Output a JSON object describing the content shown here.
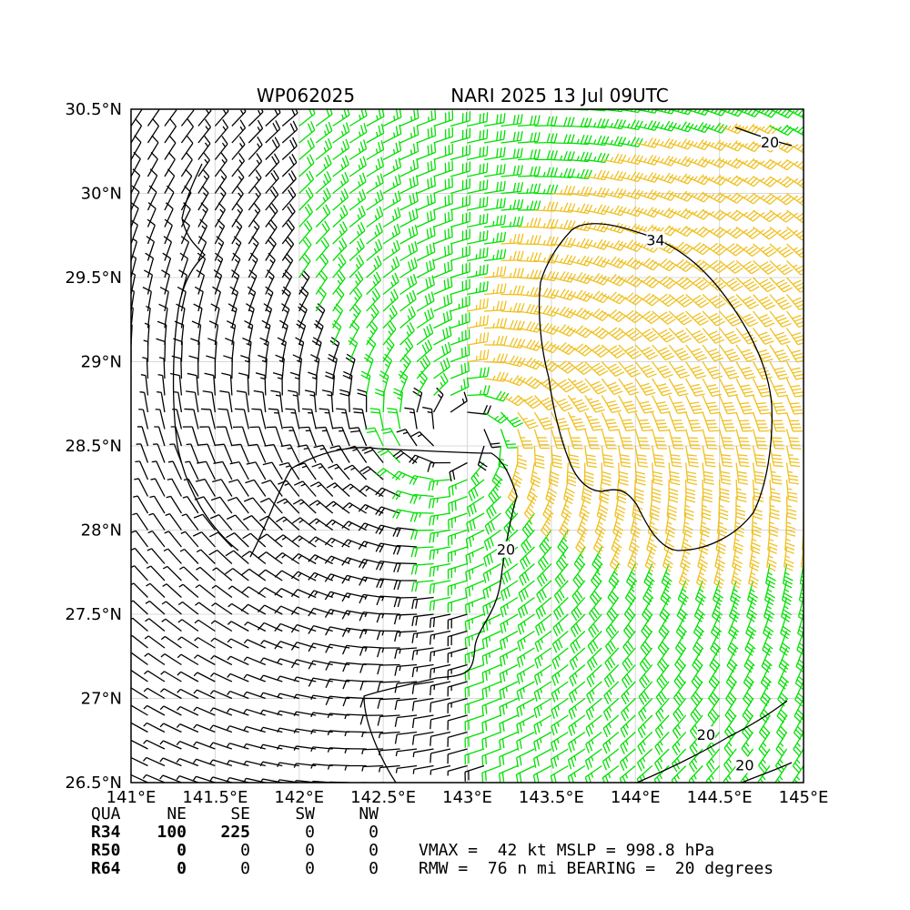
{
  "header": {
    "storm_id": "WP062025",
    "storm_info": "NARI 2025 13 Jul 09UTC"
  },
  "axes": {
    "lon_range": [
      141,
      145
    ],
    "lat_range": [
      26.5,
      30.5
    ],
    "x_ticks": [
      {
        "value": 141.0,
        "label": "141°E"
      },
      {
        "value": 141.5,
        "label": "141.5°E"
      },
      {
        "value": 142.0,
        "label": "142°E"
      },
      {
        "value": 142.5,
        "label": "142.5°E"
      },
      {
        "value": 143.0,
        "label": "143°E"
      },
      {
        "value": 143.5,
        "label": "143.5°E"
      },
      {
        "value": 144.0,
        "label": "144°E"
      },
      {
        "value": 144.5,
        "label": "144.5°E"
      },
      {
        "value": 145.0,
        "label": "145°E"
      }
    ],
    "y_ticks": [
      {
        "value": 30.5,
        "label": "30.5°N"
      },
      {
        "value": 30.0,
        "label": "30°N"
      },
      {
        "value": 29.5,
        "label": "29.5°N"
      },
      {
        "value": 29.0,
        "label": "29°N"
      },
      {
        "value": 28.5,
        "label": "28.5°N"
      },
      {
        "value": 28.0,
        "label": "28°N"
      },
      {
        "value": 27.5,
        "label": "27.5°N"
      },
      {
        "value": 27.0,
        "label": "27°N"
      },
      {
        "value": 26.5,
        "label": "26.5°N"
      }
    ],
    "grid": true
  },
  "storm": {
    "center_lon": 142.95,
    "center_lat": 28.58,
    "vmax_kt": 42,
    "rmw_nmi": 76
  },
  "contours": [
    {
      "label": "34",
      "label_lon": 144.12,
      "label_lat": 29.72
    },
    {
      "label": "20",
      "label_lon": 143.23,
      "label_lat": 27.88
    },
    {
      "label": "20",
      "label_lon": 144.42,
      "label_lat": 26.78
    },
    {
      "label": "20",
      "label_lon": 144.65,
      "label_lat": 26.6
    },
    {
      "label": "20",
      "label_lon": 144.8,
      "label_lat": 30.3
    }
  ],
  "colors": {
    "below_20kt": "#000000",
    "20_to_34kt": "#00e000",
    "above_34kt": "#f0c020",
    "contour": "#000000"
  },
  "radii_table": {
    "headers": [
      "QUA",
      "NE",
      "SE",
      "SW",
      "NW"
    ],
    "rows": [
      {
        "name": "R34",
        "values": [
          "100",
          "225",
          "0",
          "0"
        ]
      },
      {
        "name": "R50",
        "values": [
          "0",
          "0",
          "0",
          "0"
        ]
      },
      {
        "name": "R64",
        "values": [
          "0",
          "0",
          "0",
          "0"
        ]
      }
    ]
  },
  "summary": {
    "line1": "VMAX =  42 kt MSLP = 998.8 hPa",
    "line2": "RMW =  76 n mi BEARING =  20 degrees"
  }
}
